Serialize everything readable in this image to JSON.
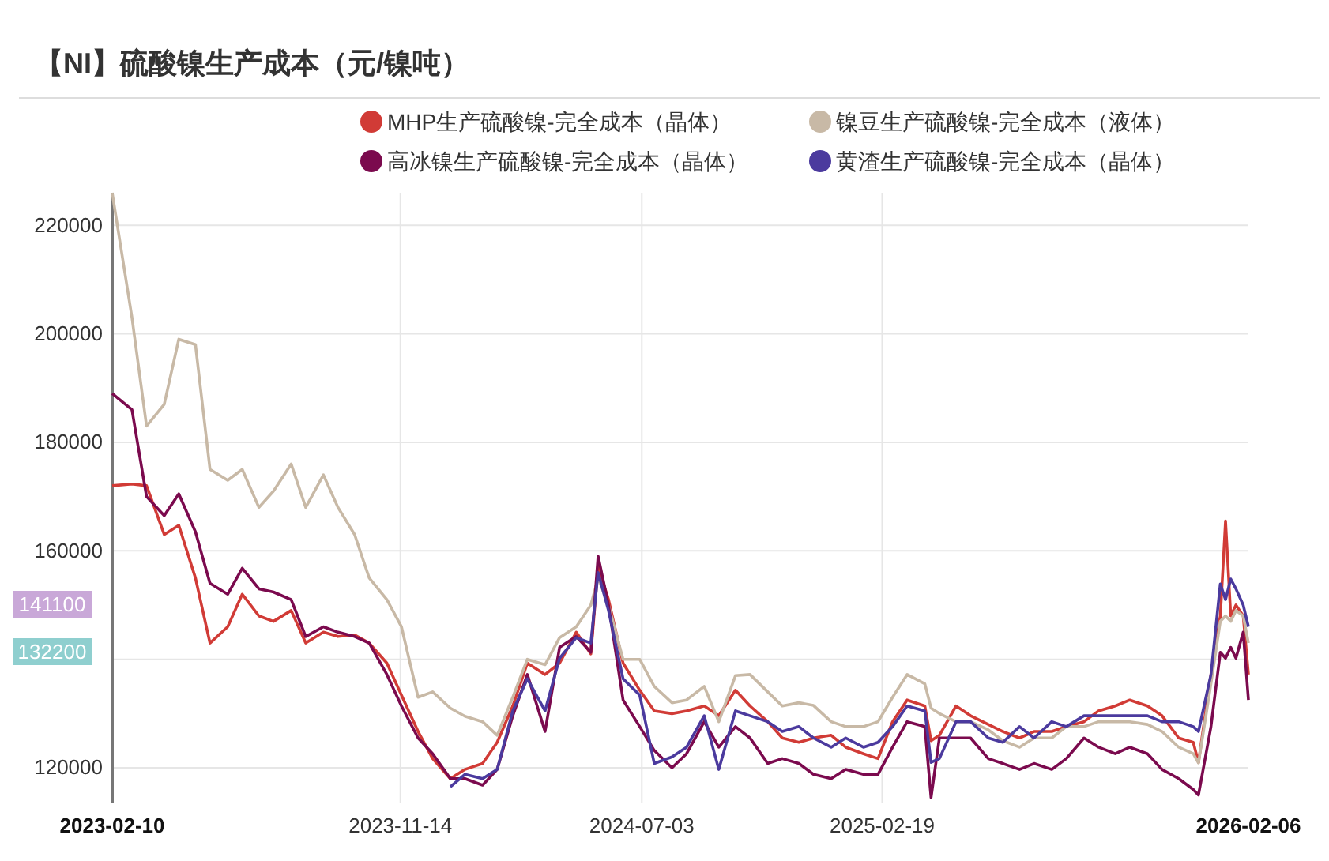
{
  "chart_data": {
    "type": "line",
    "title": "【NI】硫酸镍生产成本（元/镍吨）",
    "x": [
      "2023-02-10",
      "2023-03-01",
      "2023-03-15",
      "2023-04-01",
      "2023-04-15",
      "2023-05-01",
      "2023-05-15",
      "2023-06-01",
      "2023-06-15",
      "2023-07-01",
      "2023-07-15",
      "2023-08-01",
      "2023-08-15",
      "2023-09-01",
      "2023-09-15",
      "2023-10-01",
      "2023-10-15",
      "2023-11-01",
      "2023-11-15",
      "2023-12-01",
      "2023-12-15",
      "2024-01-01",
      "2024-01-15",
      "2024-02-01",
      "2024-02-15",
      "2024-03-01",
      "2024-03-15",
      "2024-04-01",
      "2024-04-15",
      "2024-05-01",
      "2024-05-15",
      "2024-05-22",
      "2024-06-01",
      "2024-06-15",
      "2024-07-01",
      "2024-07-15",
      "2024-08-01",
      "2024-08-15",
      "2024-09-01",
      "2024-09-15",
      "2024-10-01",
      "2024-10-15",
      "2024-11-01",
      "2024-11-15",
      "2024-12-01",
      "2024-12-15",
      "2025-01-01",
      "2025-01-15",
      "2025-02-01",
      "2025-02-15",
      "2025-03-01",
      "2025-03-15",
      "2025-04-01",
      "2025-04-07",
      "2025-04-15",
      "2025-05-01",
      "2025-05-15",
      "2025-06-01",
      "2025-06-15",
      "2025-07-01",
      "2025-07-15",
      "2025-08-01",
      "2025-08-15",
      "2025-09-01",
      "2025-09-15",
      "2025-10-01",
      "2025-10-15",
      "2025-11-01",
      "2025-11-15",
      "2025-12-01",
      "2025-12-15",
      "2025-12-20",
      "2026-01-01",
      "2026-01-10",
      "2026-01-15",
      "2026-01-20",
      "2026-01-25",
      "2026-02-01",
      "2026-02-06"
    ],
    "series": [
      {
        "name": "MHP生产硫酸镍-完全成本（晶体）",
        "color": "#d13b36",
        "values": [
          172000,
          172300,
          172000,
          163000,
          164700,
          155000,
          143000,
          146000,
          152000,
          148000,
          147000,
          149000,
          143000,
          145000,
          144200,
          144500,
          143000,
          139300,
          133400,
          126700,
          121700,
          118000,
          119700,
          120800,
          124700,
          131400,
          139300,
          137200,
          139300,
          145000,
          141000,
          157000,
          151000,
          139300,
          134300,
          130500,
          130000,
          130500,
          131400,
          129600,
          134300,
          131400,
          128500,
          125500,
          124700,
          125500,
          126000,
          123800,
          122600,
          121700,
          128500,
          132500,
          131400,
          125000,
          126000,
          131400,
          129600,
          128000,
          126700,
          125500,
          126700,
          126700,
          127600,
          128500,
          130500,
          131400,
          132500,
          131400,
          129600,
          125500,
          124700,
          121000,
          137200,
          148000,
          165500,
          148000,
          150000,
          148000,
          137200
        ]
      },
      {
        "name": "镍豆生产硫酸镍-完全成本（液体）",
        "color": "#c8b9a6",
        "values": [
          226000,
          203000,
          183000,
          187000,
          199000,
          198000,
          175000,
          173000,
          175000,
          168000,
          171000,
          176000,
          168000,
          174000,
          168000,
          163000,
          155000,
          151000,
          146000,
          133000,
          134000,
          131000,
          129500,
          128500,
          126000,
          133000,
          140000,
          139000,
          144000,
          146000,
          150000,
          155000,
          150000,
          140000,
          140000,
          135000,
          132000,
          132500,
          135000,
          128500,
          137000,
          137200,
          134000,
          131400,
          132000,
          131500,
          128500,
          127600,
          127600,
          128500,
          133000,
          137200,
          135500,
          131000,
          130000,
          128500,
          128500,
          127000,
          125000,
          123800,
          125500,
          125500,
          127600,
          127600,
          128500,
          128500,
          128500,
          128000,
          126700,
          123800,
          122600,
          120900,
          135500,
          147000,
          148000,
          147000,
          149000,
          148000,
          143000
        ]
      },
      {
        "name": "高冰镍生产硫酸镍-完全成本（晶体）",
        "color": "#7b0a4e",
        "values": [
          189000,
          186000,
          170000,
          166500,
          170500,
          163500,
          154000,
          152000,
          156800,
          153000,
          152400,
          151000,
          144200,
          146000,
          145000,
          144200,
          143000,
          137200,
          131400,
          125500,
          122600,
          118000,
          118000,
          116800,
          119700,
          129600,
          137200,
          126700,
          142200,
          144200,
          141300,
          159000,
          150000,
          132500,
          127600,
          123200,
          120000,
          122600,
          128500,
          123800,
          127600,
          125500,
          120800,
          121700,
          120800,
          118800,
          118000,
          119700,
          118800,
          118800,
          123800,
          128500,
          127600,
          114500,
          125500,
          125500,
          125500,
          121700,
          120800,
          119700,
          120800,
          119700,
          121700,
          125500,
          123800,
          122600,
          123800,
          122600,
          119700,
          118000,
          116000,
          115000,
          127600,
          141300,
          140200,
          142200,
          140200,
          145000,
          132500
        ]
      },
      {
        "name": "黄渣生产硫酸镍-完全成本（晶体）",
        "color": "#4b3a9e",
        "values": [
          null,
          null,
          null,
          null,
          null,
          null,
          null,
          null,
          null,
          null,
          null,
          null,
          null,
          null,
          null,
          null,
          null,
          null,
          null,
          null,
          null,
          116500,
          118800,
          118000,
          119700,
          130500,
          136400,
          130500,
          140200,
          144000,
          143000,
          156000,
          149000,
          136400,
          133400,
          120800,
          122000,
          123800,
          129600,
          119700,
          130500,
          129600,
          128500,
          126700,
          127600,
          125500,
          123800,
          125500,
          123800,
          124700,
          127600,
          131400,
          130500,
          121000,
          121700,
          128500,
          128500,
          125500,
          124700,
          127600,
          125500,
          128500,
          127600,
          129600,
          129600,
          129600,
          129600,
          129600,
          128500,
          128500,
          127600,
          126700,
          137200,
          153900,
          151000,
          154800,
          153000,
          150000,
          146000
        ]
      }
    ],
    "xlim": [
      "2023-02-10",
      "2026-02-06"
    ],
    "xticks": [
      "2023-02-10",
      "2023-11-14",
      "2024-07-03",
      "2025-02-19",
      "2026-02-06"
    ],
    "ylim": [
      113600,
      226000
    ],
    "yticks": [
      120000,
      {
        "value": 140000,
        "label": null
      },
      160000,
      180000,
      200000,
      220000
    ],
    "annotations": [
      "141100",
      "132200"
    ],
    "grid": true,
    "legend": "top",
    "marker": "none",
    "line_style": "solid"
  }
}
